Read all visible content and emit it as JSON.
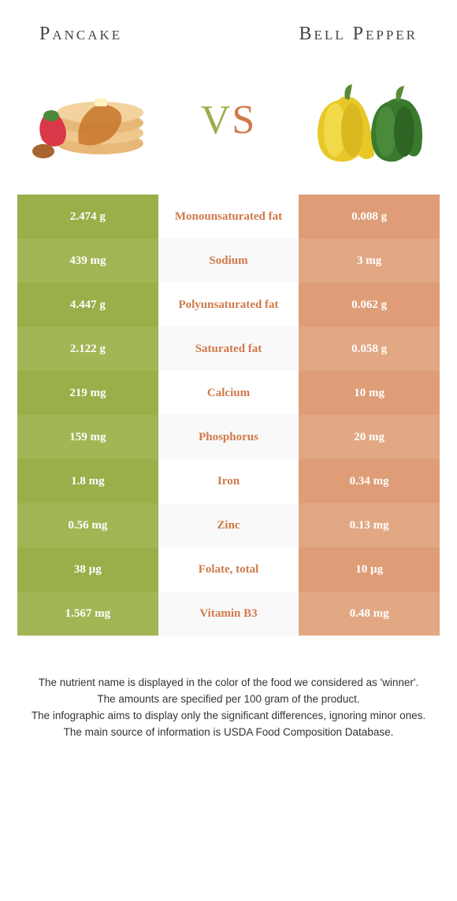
{
  "header": {
    "left_title": "Pancake",
    "right_title": "Bell Pepper",
    "vs_v": "V",
    "vs_s": "S"
  },
  "colors": {
    "left_food": "#9aae4a",
    "right_food": "#de9d76",
    "left_alt": "#a3b655",
    "right_alt": "#e2a884",
    "nutrient_text": "#d1794a",
    "row_alt_bg": "#f9f9f9",
    "row_bg": "#ffffff"
  },
  "table": {
    "rows": [
      {
        "left": "2.474 g",
        "nutrient": "Monounsaturated fat",
        "right": "0.008 g"
      },
      {
        "left": "439 mg",
        "nutrient": "Sodium",
        "right": "3 mg"
      },
      {
        "left": "4.447 g",
        "nutrient": "Polyunsaturated fat",
        "right": "0.062 g"
      },
      {
        "left": "2.122 g",
        "nutrient": "Saturated fat",
        "right": "0.058 g"
      },
      {
        "left": "219 mg",
        "nutrient": "Calcium",
        "right": "10 mg"
      },
      {
        "left": "159 mg",
        "nutrient": "Phosphorus",
        "right": "20 mg"
      },
      {
        "left": "1.8 mg",
        "nutrient": "Iron",
        "right": "0.34 mg"
      },
      {
        "left": "0.56 mg",
        "nutrient": "Zinc",
        "right": "0.13 mg"
      },
      {
        "left": "38 µg",
        "nutrient": "Folate, total",
        "right": "10 µg"
      },
      {
        "left": "1.567 mg",
        "nutrient": "Vitamin B3",
        "right": "0.48 mg"
      }
    ]
  },
  "footer": {
    "line1": "The nutrient name is displayed in the color of the food we considered as 'winner'.",
    "line2": "The amounts are specified per 100 gram of the product.",
    "line3": "The infographic aims to display only the significant differences, ignoring minor ones.",
    "line4": "The main source of information is USDA Food Composition Database."
  }
}
